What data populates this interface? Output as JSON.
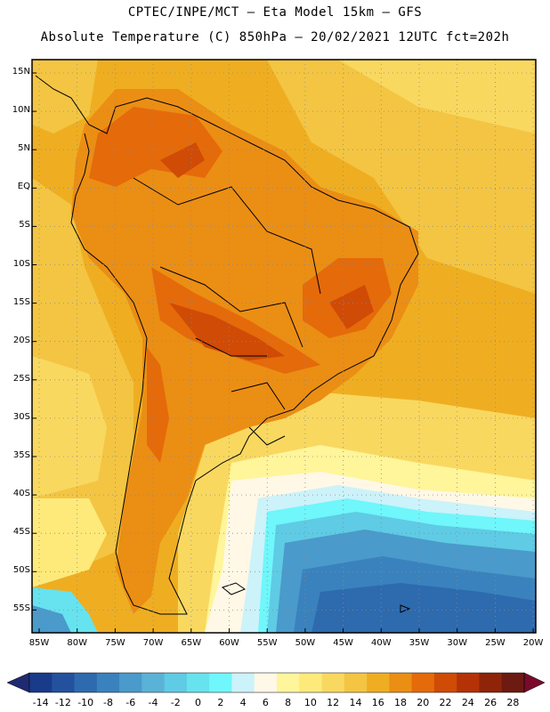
{
  "title": {
    "line1": "CPTEC/INPE/MCT –  Eta Model 15km – GFS",
    "line2": "Absolute Temperature (C) 850hPa – 20/02/2021 12UTC fct=202h"
  },
  "map": {
    "region": "South America",
    "lat_labels": [
      "15N",
      "10N",
      "5N",
      "EQ",
      "5S",
      "10S",
      "15S",
      "20S",
      "25S",
      "30S",
      "35S",
      "40S",
      "45S",
      "50S",
      "55S"
    ],
    "lon_labels": [
      "85W",
      "80W",
      "75W",
      "70W",
      "65W",
      "60W",
      "55W",
      "50W",
      "45W",
      "40W",
      "35W",
      "30W",
      "25W",
      "20W"
    ]
  },
  "colorbar": {
    "labels": [
      "-14",
      "-12",
      "-10",
      "-8",
      "-6",
      "-4",
      "-2",
      "0",
      "2",
      "4",
      "6",
      "8",
      "10",
      "12",
      "14",
      "16",
      "18",
      "20",
      "22",
      "24",
      "26",
      "28"
    ],
    "colors": [
      "#1a3a8a",
      "#23519e",
      "#2e6aae",
      "#3a82bd",
      "#4a9acb",
      "#5ab3d7",
      "#5fcbe4",
      "#66e3ef",
      "#6ff7fb",
      "#ccf2fa",
      "#fff8e6",
      "#fff59a",
      "#fdea7a",
      "#f9d860",
      "#f3c543",
      "#efae21",
      "#eb8e14",
      "#e56a0a",
      "#cf4b06",
      "#b43206",
      "#8f2408",
      "#6c1a12"
    ],
    "left_arrow_color": "#1f2a70",
    "right_arrow_color": "#7a0a2a"
  }
}
